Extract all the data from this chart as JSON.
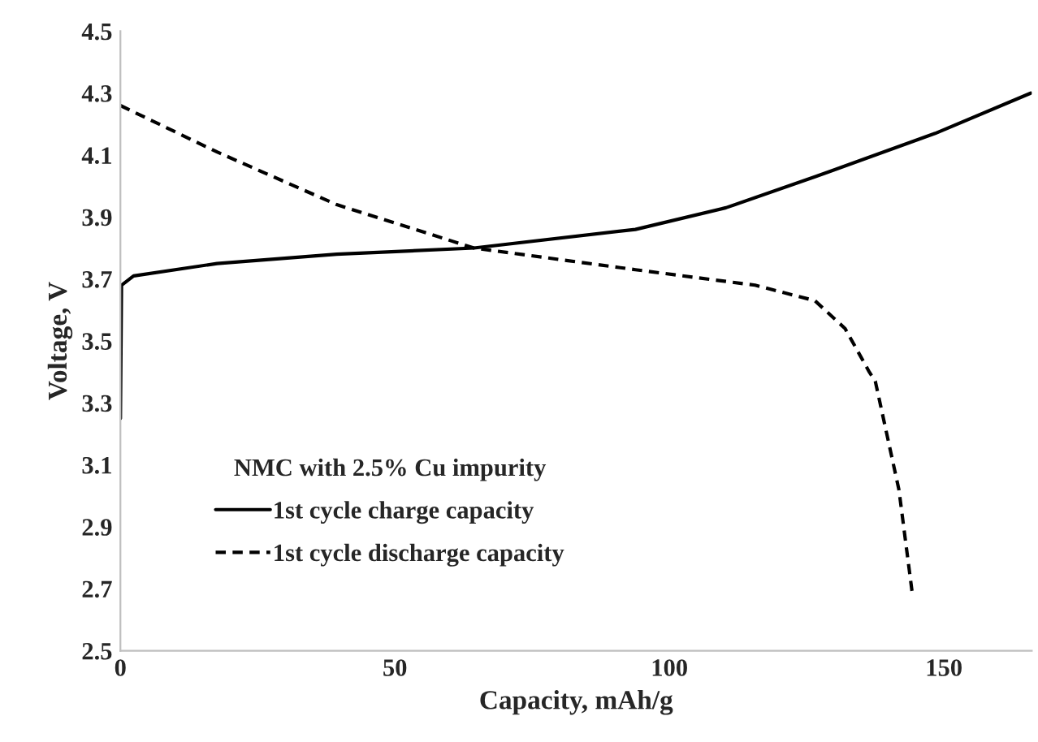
{
  "chart_data": {
    "type": "line",
    "xlabel": "Capacity, mAh/g",
    "ylabel": "Voltage, V",
    "legend_title": "NMC with 2.5% Cu impurity",
    "xlim": [
      0,
      166
    ],
    "xticks": [
      0,
      50,
      100,
      150
    ],
    "ylim": [
      2.5,
      4.5
    ],
    "yticks": [
      2.5,
      2.7,
      2.9,
      3.1,
      3.3,
      3.5,
      3.7,
      3.9,
      4.1,
      4.3,
      4.5
    ],
    "grid": false,
    "legend": "lower left",
    "marker": "none",
    "series": [
      {
        "name": "1st cycle charge capacity",
        "color": "#000000",
        "line_style": "solid",
        "x": [
          0,
          0.2,
          2.4,
          17.6,
          39.4,
          64.4,
          93.8,
          110.3,
          126.5,
          148.4,
          165.8
        ],
        "values": [
          3.25,
          3.68,
          3.71,
          3.75,
          3.78,
          3.8,
          3.86,
          3.93,
          4.03,
          4.17,
          4.3
        ]
      },
      {
        "name": "1st cycle discharge capacity",
        "color": "#000000",
        "line_style": "dashed",
        "x": [
          0,
          17.6,
          39.4,
          64.4,
          93.8,
          115.6,
          126.5,
          132,
          136.4,
          137.5,
          141.8,
          144.2
        ],
        "values": [
          4.26,
          4.11,
          3.94,
          3.8,
          3.73,
          3.68,
          3.63,
          3.54,
          3.4,
          3.37,
          3.02,
          2.69
        ]
      }
    ]
  }
}
